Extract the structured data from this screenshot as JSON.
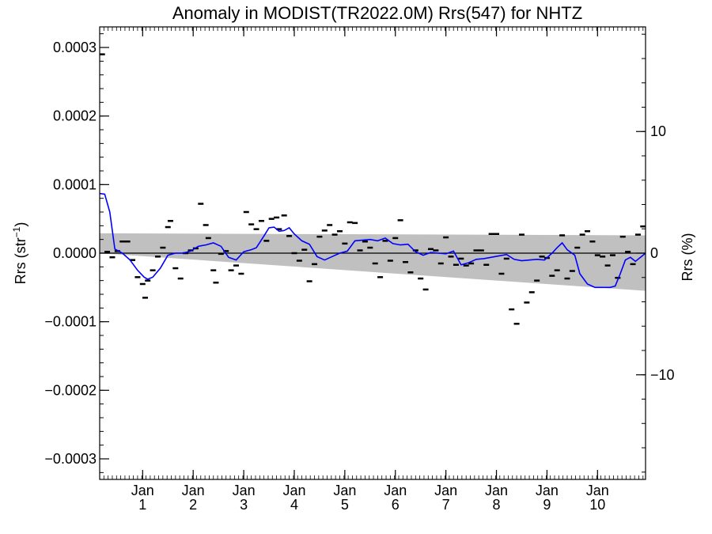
{
  "chart_data": {
    "type": "scatter",
    "title": "Anomaly in MODIST(TR2022.0M) Rrs(547) for NHTZ",
    "ylabel_left": "Rrs (str",
    "ylabel_left_sup": "−1",
    "ylabel_left_close": ")",
    "ylabel_right": "Rrs (%)",
    "xlim": [
      0,
      10.8
    ],
    "ylim": [
      -0.00033,
      0.00033
    ],
    "y_right_lim": [
      -18.6,
      18.6
    ],
    "y_ticks": [
      {
        "value": 0.0003,
        "label": "0.0003"
      },
      {
        "value": 0.0002,
        "label": "0.0002"
      },
      {
        "value": 0.0001,
        "label": "0.0001"
      },
      {
        "value": 0.0,
        "label": "0.0000"
      },
      {
        "value": -0.0001,
        "label": "−0.0001"
      },
      {
        "value": -0.0002,
        "label": "−0.0002"
      },
      {
        "value": -0.0003,
        "label": "−0.0003"
      }
    ],
    "y_right_ticks": [
      {
        "value": 10,
        "label": "10"
      },
      {
        "value": 0,
        "label": "0"
      },
      {
        "value": -10,
        "label": "−10"
      }
    ],
    "x_ticks": [
      {
        "value": 0.85,
        "month": "Jan",
        "year": "1"
      },
      {
        "value": 1.85,
        "month": "Jan",
        "year": "2"
      },
      {
        "value": 2.85,
        "month": "Jan",
        "year": "3"
      },
      {
        "value": 3.85,
        "month": "Jan",
        "year": "4"
      },
      {
        "value": 4.85,
        "month": "Jan",
        "year": "5"
      },
      {
        "value": 5.85,
        "month": "Jan",
        "year": "6"
      },
      {
        "value": 6.85,
        "month": "Jan",
        "year": "7"
      },
      {
        "value": 7.85,
        "month": "Jan",
        "year": "8"
      },
      {
        "value": 8.85,
        "month": "Jan",
        "year": "9"
      },
      {
        "value": 9.85,
        "month": "Jan",
        "year": "10"
      }
    ],
    "band": {
      "upper": [
        [
          0,
          2.9e-05
        ],
        [
          10.8,
          2.6e-05
        ]
      ],
      "lower": [
        [
          0,
          0.0
        ],
        [
          10.8,
          -5.5e-05
        ]
      ],
      "color": "#c0c0c0"
    },
    "zero_line": 0.0,
    "smooth_series": {
      "color": "#0000ff",
      "points": [
        [
          0.0,
          8.7e-05
        ],
        [
          0.1,
          8.6e-05
        ],
        [
          0.2,
          6e-05
        ],
        [
          0.3,
          6e-06
        ],
        [
          0.45,
          0.0
        ],
        [
          0.6,
          -1e-05
        ],
        [
          0.75,
          -2.5e-05
        ],
        [
          0.88,
          -3.5e-05
        ],
        [
          0.95,
          -3.8e-05
        ],
        [
          1.05,
          -3.5e-05
        ],
        [
          1.2,
          -2.2e-05
        ],
        [
          1.35,
          -3e-06
        ],
        [
          1.5,
          0.0
        ],
        [
          1.65,
          0.0
        ],
        [
          1.8,
          3e-06
        ],
        [
          1.95,
          1e-05
        ],
        [
          2.1,
          1.2e-05
        ],
        [
          2.25,
          1.5e-05
        ],
        [
          2.4,
          1e-05
        ],
        [
          2.55,
          -6e-06
        ],
        [
          2.7,
          -1e-05
        ],
        [
          2.85,
          2e-06
        ],
        [
          3.0,
          5e-06
        ],
        [
          3.1,
          8e-06
        ],
        [
          3.25,
          2.5e-05
        ],
        [
          3.35,
          3.7e-05
        ],
        [
          3.45,
          3.8e-05
        ],
        [
          3.55,
          3.2e-05
        ],
        [
          3.65,
          3.3e-05
        ],
        [
          3.75,
          3.7e-05
        ],
        [
          3.85,
          2.8e-05
        ],
        [
          4.0,
          1.8e-05
        ],
        [
          4.15,
          1.3e-05
        ],
        [
          4.3,
          -5e-06
        ],
        [
          4.45,
          -1e-05
        ],
        [
          4.6,
          -5e-06
        ],
        [
          4.75,
          0.0
        ],
        [
          4.9,
          3e-06
        ],
        [
          5.05,
          1.8e-05
        ],
        [
          5.2,
          1.9e-05
        ],
        [
          5.35,
          2e-05
        ],
        [
          5.5,
          1.8e-05
        ],
        [
          5.65,
          2.2e-05
        ],
        [
          5.8,
          1.4e-05
        ],
        [
          5.95,
          1.2e-05
        ],
        [
          6.1,
          1.3e-05
        ],
        [
          6.25,
          2e-06
        ],
        [
          6.4,
          -3e-06
        ],
        [
          6.55,
          1e-06
        ],
        [
          6.7,
          0.0
        ],
        [
          6.85,
          -1e-06
        ],
        [
          7.0,
          3e-06
        ],
        [
          7.15,
          -1.7e-05
        ],
        [
          7.3,
          -1.4e-05
        ],
        [
          7.45,
          -9e-06
        ],
        [
          7.6,
          -8e-06
        ],
        [
          7.75,
          -6e-06
        ],
        [
          7.9,
          -4e-06
        ],
        [
          8.05,
          -2e-06
        ],
        [
          8.2,
          -9e-06
        ],
        [
          8.35,
          -1.1e-05
        ],
        [
          8.5,
          -1e-05
        ],
        [
          8.65,
          -9e-06
        ],
        [
          8.8,
          -1e-05
        ],
        [
          8.95,
          0.0
        ],
        [
          9.05,
          8e-06
        ],
        [
          9.15,
          1.5e-05
        ],
        [
          9.25,
          5e-06
        ],
        [
          9.4,
          -3e-06
        ],
        [
          9.5,
          -3e-05
        ],
        [
          9.65,
          -4.5e-05
        ],
        [
          9.8,
          -5e-05
        ],
        [
          9.95,
          -5e-05
        ],
        [
          10.1,
          -5e-05
        ],
        [
          10.2,
          -4.8e-05
        ],
        [
          10.3,
          -3e-05
        ],
        [
          10.4,
          -1e-05
        ],
        [
          10.5,
          -6e-06
        ],
        [
          10.6,
          -1.2e-05
        ],
        [
          10.7,
          -6e-06
        ],
        [
          10.8,
          0.0
        ]
      ]
    },
    "points_series": {
      "color": "#000000",
      "points": [
        [
          0.05,
          0.00029
        ],
        [
          0.15,
          2e-06
        ],
        [
          0.25,
          -6e-06
        ],
        [
          0.35,
          3e-06
        ],
        [
          0.45,
          1.7e-05
        ],
        [
          0.55,
          1.7e-05
        ],
        [
          0.65,
          -1e-05
        ],
        [
          0.75,
          -3.5e-05
        ],
        [
          0.85,
          -4.5e-05
        ],
        [
          0.9,
          -6.5e-05
        ],
        [
          0.95,
          -4e-05
        ],
        [
          1.05,
          -2.5e-05
        ],
        [
          1.15,
          -5e-06
        ],
        [
          1.25,
          8e-06
        ],
        [
          1.35,
          3.8e-05
        ],
        [
          1.4,
          4.7e-05
        ],
        [
          1.5,
          -2.2e-05
        ],
        [
          1.6,
          -3.7e-05
        ],
        [
          1.7,
          0.0
        ],
        [
          1.8,
          4e-06
        ],
        [
          1.9,
          7e-06
        ],
        [
          2.0,
          7.2e-05
        ],
        [
          2.1,
          4.1e-05
        ],
        [
          2.15,
          2.2e-05
        ],
        [
          2.25,
          -2.5e-05
        ],
        [
          2.3,
          -4.3e-05
        ],
        [
          2.4,
          -1e-06
        ],
        [
          2.5,
          3e-06
        ],
        [
          2.6,
          -2.5e-05
        ],
        [
          2.7,
          -1.8e-05
        ],
        [
          2.8,
          -3e-05
        ],
        [
          2.9,
          6e-05
        ],
        [
          3.0,
          4.2e-05
        ],
        [
          3.1,
          3.5e-05
        ],
        [
          3.2,
          4.7e-05
        ],
        [
          3.3,
          1.8e-05
        ],
        [
          3.4,
          5e-05
        ],
        [
          3.5,
          5.2e-05
        ],
        [
          3.55,
          3.5e-05
        ],
        [
          3.65,
          5.5e-05
        ],
        [
          3.75,
          2.5e-05
        ],
        [
          3.85,
          0.0
        ],
        [
          3.95,
          -1.1e-05
        ],
        [
          4.05,
          5e-06
        ],
        [
          4.15,
          -4.1e-05
        ],
        [
          4.25,
          -1.6e-05
        ],
        [
          4.35,
          2.4e-05
        ],
        [
          4.45,
          3.3e-05
        ],
        [
          4.55,
          4.1e-05
        ],
        [
          4.65,
          2.7e-05
        ],
        [
          4.75,
          3.2e-05
        ],
        [
          4.85,
          1.4e-05
        ],
        [
          4.95,
          4.5e-05
        ],
        [
          5.05,
          4.4e-05
        ],
        [
          5.15,
          4e-06
        ],
        [
          5.25,
          1.7e-05
        ],
        [
          5.35,
          8e-06
        ],
        [
          5.45,
          -1.5e-05
        ],
        [
          5.55,
          -3.5e-05
        ],
        [
          5.65,
          1.8e-05
        ],
        [
          5.75,
          -1.1e-05
        ],
        [
          5.85,
          2.2e-05
        ],
        [
          5.95,
          4.8e-05
        ],
        [
          6.05,
          -1.3e-05
        ],
        [
          6.15,
          -2.8e-05
        ],
        [
          6.25,
          4e-06
        ],
        [
          6.35,
          -3.7e-05
        ],
        [
          6.45,
          -5.3e-05
        ],
        [
          6.55,
          6e-06
        ],
        [
          6.65,
          4e-06
        ],
        [
          6.75,
          -1.5e-05
        ],
        [
          6.85,
          2.3e-05
        ],
        [
          6.95,
          -5e-06
        ],
        [
          7.05,
          -1.7e-05
        ],
        [
          7.15,
          -8e-06
        ],
        [
          7.25,
          -1.8e-05
        ],
        [
          7.35,
          -1.5e-05
        ],
        [
          7.45,
          4e-06
        ],
        [
          7.55,
          4e-06
        ],
        [
          7.65,
          -1.7e-05
        ],
        [
          7.75,
          2.8e-05
        ],
        [
          7.85,
          2.8e-05
        ],
        [
          7.95,
          -3e-05
        ],
        [
          8.05,
          -8e-06
        ],
        [
          8.15,
          -8.2e-05
        ],
        [
          8.25,
          -0.000103
        ],
        [
          8.35,
          2.7e-05
        ],
        [
          8.45,
          -7.2e-05
        ],
        [
          8.55,
          -5.7e-05
        ],
        [
          8.65,
          -4e-05
        ],
        [
          8.75,
          -5e-06
        ],
        [
          8.85,
          -7e-06
        ],
        [
          8.95,
          -3.3e-05
        ],
        [
          9.05,
          -2.5e-05
        ],
        [
          9.15,
          2.6e-05
        ],
        [
          9.25,
          -3.7e-05
        ],
        [
          9.35,
          -2.6e-05
        ],
        [
          9.45,
          8e-06
        ],
        [
          9.55,
          2.7e-05
        ],
        [
          9.65,
          3.2e-05
        ],
        [
          9.75,
          1.7e-05
        ],
        [
          9.85,
          -3e-06
        ],
        [
          9.95,
          -5e-06
        ],
        [
          10.05,
          -1.8e-05
        ],
        [
          10.15,
          -3e-06
        ],
        [
          10.25,
          -3.6e-05
        ],
        [
          10.35,
          2.4e-05
        ],
        [
          10.45,
          2e-06
        ],
        [
          10.55,
          -1.6e-05
        ],
        [
          10.65,
          2.7e-05
        ],
        [
          10.75,
          3.9e-05
        ]
      ]
    }
  }
}
